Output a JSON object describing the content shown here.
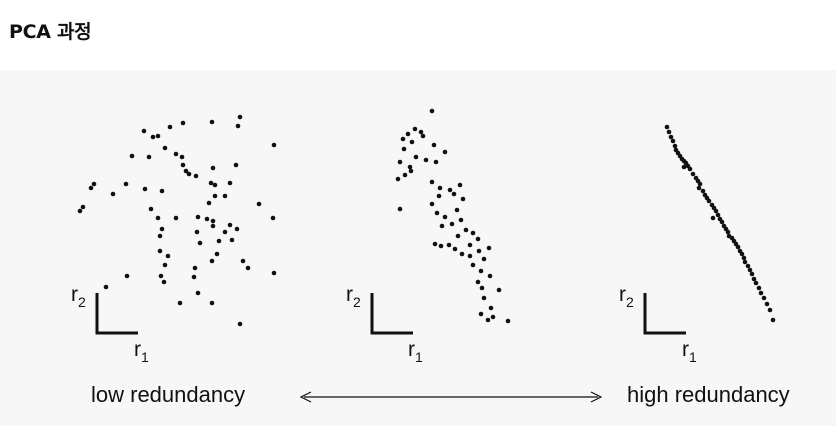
{
  "title": "PCA 과정",
  "axes": {
    "x_label": "r",
    "x_sub": "1",
    "y_label": "r",
    "y_sub": "2"
  },
  "captions": {
    "left": "low redundancy",
    "right": "high redundancy"
  },
  "panels": [
    {
      "name": "low-redundancy-panel",
      "points": [
        [
          144,
          131
        ],
        [
          170,
          127
        ],
        [
          183,
          123
        ],
        [
          212,
          122
        ],
        [
          240,
          117
        ],
        [
          153,
          137
        ],
        [
          158,
          136
        ],
        [
          165,
          148
        ],
        [
          238,
          126
        ],
        [
          274,
          145
        ],
        [
          132,
          156
        ],
        [
          149,
          157
        ],
        [
          176,
          154
        ],
        [
          182,
          157
        ],
        [
          186,
          171
        ],
        [
          189,
          174
        ],
        [
          196,
          176
        ],
        [
          183,
          165
        ],
        [
          213,
          168
        ],
        [
          236,
          165
        ],
        [
          94,
          184
        ],
        [
          91,
          188
        ],
        [
          83,
          207
        ],
        [
          80,
          211
        ],
        [
          126,
          184
        ],
        [
          113,
          194
        ],
        [
          145,
          189
        ],
        [
          162,
          191
        ],
        [
          211,
          183
        ],
        [
          215,
          185
        ],
        [
          215,
          196
        ],
        [
          209,
          203
        ],
        [
          207,
          219
        ],
        [
          213,
          221
        ],
        [
          225,
          196
        ],
        [
          230,
          183
        ],
        [
          259,
          204
        ],
        [
          273,
          218
        ],
        [
          151,
          209
        ],
        [
          158,
          218
        ],
        [
          162,
          229
        ],
        [
          160,
          236
        ],
        [
          176,
          218
        ],
        [
          198,
          217
        ],
        [
          197,
          232
        ],
        [
          200,
          243
        ],
        [
          213,
          226
        ],
        [
          219,
          241
        ],
        [
          217,
          254
        ],
        [
          212,
          261
        ],
        [
          230,
          225
        ],
        [
          225,
          232
        ],
        [
          232,
          240
        ],
        [
          237,
          229
        ],
        [
          243,
          261
        ],
        [
          248,
          268
        ],
        [
          274,
          273
        ],
        [
          160,
          251
        ],
        [
          168,
          256
        ],
        [
          165,
          265
        ],
        [
          161,
          276
        ],
        [
          164,
          282
        ],
        [
          195,
          268
        ],
        [
          194,
          277
        ],
        [
          198,
          293
        ],
        [
          180,
          303
        ],
        [
          212,
          303
        ],
        [
          240,
          324
        ],
        [
          127,
          276
        ],
        [
          106,
          287
        ]
      ]
    },
    {
      "name": "medium-redundancy-panel",
      "points": [
        [
          432,
          111
        ],
        [
          415,
          129
        ],
        [
          421,
          132
        ],
        [
          423,
          136
        ],
        [
          408,
          134
        ],
        [
          403,
          139
        ],
        [
          412,
          142
        ],
        [
          404,
          149
        ],
        [
          416,
          157
        ],
        [
          434,
          145
        ],
        [
          436,
          162
        ],
        [
          445,
          152
        ],
        [
          426,
          160
        ],
        [
          400,
          162
        ],
        [
          410,
          167
        ],
        [
          405,
          175
        ],
        [
          398,
          179
        ],
        [
          411,
          171
        ],
        [
          432,
          182
        ],
        [
          440,
          188
        ],
        [
          439,
          196
        ],
        [
          432,
          204
        ],
        [
          450,
          190
        ],
        [
          460,
          185
        ],
        [
          454,
          194
        ],
        [
          463,
          199
        ],
        [
          457,
          210
        ],
        [
          461,
          220
        ],
        [
          437,
          213
        ],
        [
          445,
          217
        ],
        [
          442,
          226
        ],
        [
          400,
          209
        ],
        [
          452,
          224
        ],
        [
          466,
          230
        ],
        [
          458,
          236
        ],
        [
          473,
          233
        ],
        [
          478,
          239
        ],
        [
          470,
          245
        ],
        [
          435,
          244
        ],
        [
          441,
          246
        ],
        [
          449,
          245
        ],
        [
          455,
          249
        ],
        [
          462,
          254
        ],
        [
          470,
          256
        ],
        [
          479,
          251
        ],
        [
          489,
          248
        ],
        [
          484,
          259
        ],
        [
          473,
          265
        ],
        [
          481,
          271
        ],
        [
          490,
          276
        ],
        [
          478,
          282
        ],
        [
          482,
          288
        ],
        [
          499,
          290
        ],
        [
          484,
          298
        ],
        [
          491,
          308
        ],
        [
          481,
          314
        ],
        [
          493,
          317
        ],
        [
          488,
          320
        ],
        [
          508,
          321
        ]
      ]
    },
    {
      "name": "high-redundancy-panel",
      "points": [
        [
          667,
          127
        ],
        [
          669,
          132
        ],
        [
          671,
          137
        ],
        [
          673,
          141
        ],
        [
          675,
          146
        ],
        [
          676,
          150
        ],
        [
          678,
          153
        ],
        [
          680,
          156
        ],
        [
          682,
          159
        ],
        [
          684,
          161
        ],
        [
          686,
          163
        ],
        [
          684,
          167
        ],
        [
          688,
          166
        ],
        [
          690,
          169
        ],
        [
          693,
          174
        ],
        [
          696,
          178
        ],
        [
          698,
          181
        ],
        [
          700,
          184
        ],
        [
          699,
          188
        ],
        [
          703,
          191
        ],
        [
          705,
          195
        ],
        [
          707,
          198
        ],
        [
          709,
          201
        ],
        [
          712,
          205
        ],
        [
          714,
          208
        ],
        [
          716,
          211
        ],
        [
          718,
          215
        ],
        [
          713,
          218
        ],
        [
          720,
          219
        ],
        [
          722,
          222
        ],
        [
          724,
          226
        ],
        [
          726,
          229
        ],
        [
          728,
          232
        ],
        [
          729,
          236
        ],
        [
          732,
          238
        ],
        [
          734,
          241
        ],
        [
          736,
          244
        ],
        [
          738,
          247
        ],
        [
          740,
          251
        ],
        [
          742,
          254
        ],
        [
          744,
          258
        ],
        [
          745,
          262
        ],
        [
          748,
          266
        ],
        [
          750,
          270
        ],
        [
          752,
          274
        ],
        [
          754,
          279
        ],
        [
          756,
          283
        ],
        [
          759,
          288
        ],
        [
          761,
          293
        ],
        [
          764,
          298
        ],
        [
          767,
          304
        ],
        [
          770,
          310
        ],
        [
          773,
          320
        ]
      ]
    }
  ]
}
